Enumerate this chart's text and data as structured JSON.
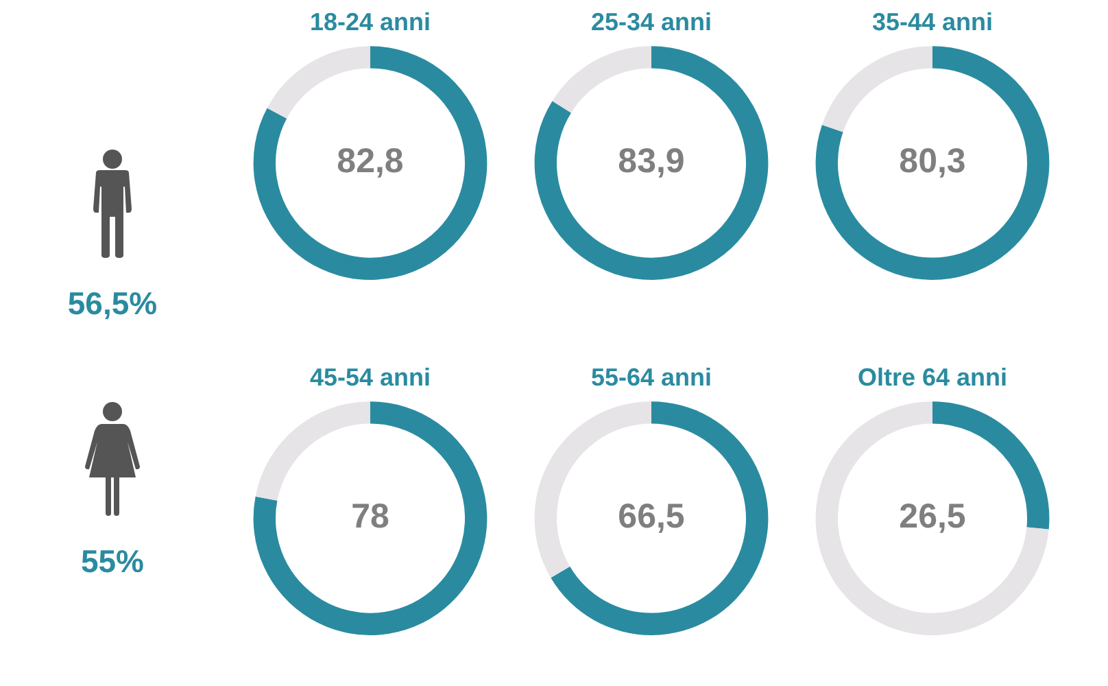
{
  "chart_data": [
    {
      "type": "other",
      "annotations": [
        "56,5%"
      ]
    },
    {
      "type": "donut",
      "title": "18-24 anni",
      "categories": [
        null,
        null
      ],
      "values": [
        82.8,
        17.2
      ],
      "colors": [
        "#2a8ba0",
        "#e6e4e6"
      ],
      "value_labels": [
        "82,8",
        null
      ]
    },
    {
      "type": "donut",
      "title": "25-34 anni",
      "categories": [
        null,
        null
      ],
      "values": [
        83.9,
        16.1
      ],
      "colors": [
        "#2a8ba0",
        "#e6e4e6"
      ],
      "value_labels": [
        "83,9",
        null
      ]
    },
    {
      "type": "donut",
      "title": "35-44 anni",
      "categories": [
        null,
        null
      ],
      "values": [
        80.3,
        19.7
      ],
      "colors": [
        "#2a8ba0",
        "#e6e4e6"
      ],
      "value_labels": [
        "80,3",
        null
      ]
    },
    {
      "type": "other",
      "annotations": [
        "55%"
      ]
    },
    {
      "type": "donut",
      "title": "45-54 anni",
      "categories": [
        null,
        null
      ],
      "values": [
        78,
        22
      ],
      "colors": [
        "#2a8ba0",
        "#e6e4e6"
      ],
      "value_labels": [
        "78",
        null
      ]
    },
    {
      "type": "donut",
      "title": "55-64 anni",
      "categories": [
        null,
        null
      ],
      "values": [
        66.5,
        33.5
      ],
      "colors": [
        "#2a8ba0",
        "#e6e4e6"
      ],
      "value_labels": [
        "66,5",
        null
      ]
    },
    {
      "type": "donut",
      "title": "Oltre 64 anni",
      "categories": [
        null,
        null
      ],
      "values": [
        26.5,
        73.5
      ],
      "colors": [
        "#2a8ba0",
        "#e6e4e6"
      ],
      "value_labels": [
        "26,5",
        null
      ]
    }
  ]
}
